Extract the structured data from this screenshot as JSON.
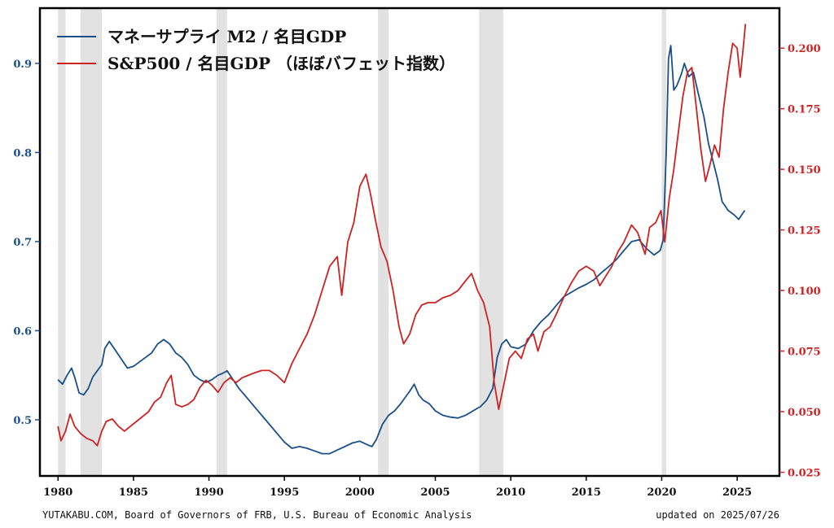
{
  "chart_data": {
    "type": "line",
    "x_range": [
      1978.8,
      2027.8
    ],
    "left_axis": {
      "ylim": [
        0.437,
        0.962
      ],
      "ticks": [
        0.5,
        0.6,
        0.7,
        0.8,
        0.9
      ],
      "tick_labels": [
        "0.5",
        "0.6",
        "0.7",
        "0.8",
        "0.9"
      ],
      "color": "#1a4f8a"
    },
    "right_axis": {
      "ylim": [
        0.0235,
        0.2165
      ],
      "ticks": [
        0.025,
        0.05,
        0.075,
        0.1,
        0.125,
        0.15,
        0.175,
        0.2
      ],
      "tick_labels": [
        "0.025",
        "0.050",
        "0.075",
        "0.100",
        "0.125",
        "0.150",
        "0.175",
        "0.200"
      ],
      "color": "#cc2222"
    },
    "x_ticks": [
      1980,
      1985,
      1990,
      1995,
      2000,
      2005,
      2010,
      2015,
      2020,
      2025
    ],
    "x_tick_labels": [
      "1980",
      "1985",
      "1990",
      "1995",
      "2000",
      "2005",
      "2010",
      "2015",
      "2020",
      "2025"
    ],
    "recessions": [
      [
        1980.0,
        1980.5
      ],
      [
        1981.5,
        1982.9
      ],
      [
        1990.5,
        1991.2
      ],
      [
        2001.2,
        2001.9
      ],
      [
        2007.9,
        2009.5
      ],
      [
        2020.0,
        2020.3
      ]
    ],
    "series": [
      {
        "name": "マネーサプライ M2 / 名目GDP",
        "axis": "left",
        "color": "#1a4f8a",
        "points": [
          [
            1980.0,
            0.545
          ],
          [
            1980.3,
            0.54
          ],
          [
            1980.6,
            0.55
          ],
          [
            1980.9,
            0.558
          ],
          [
            1981.1,
            0.548
          ],
          [
            1981.4,
            0.53
          ],
          [
            1981.7,
            0.528
          ],
          [
            1982.0,
            0.535
          ],
          [
            1982.3,
            0.548
          ],
          [
            1982.6,
            0.555
          ],
          [
            1982.9,
            0.562
          ],
          [
            1983.1,
            0.58
          ],
          [
            1983.4,
            0.588
          ],
          [
            1983.8,
            0.578
          ],
          [
            1984.2,
            0.568
          ],
          [
            1984.6,
            0.558
          ],
          [
            1985.0,
            0.56
          ],
          [
            1985.4,
            0.565
          ],
          [
            1985.8,
            0.57
          ],
          [
            1986.2,
            0.575
          ],
          [
            1986.6,
            0.585
          ],
          [
            1987.0,
            0.59
          ],
          [
            1987.4,
            0.585
          ],
          [
            1987.8,
            0.575
          ],
          [
            1988.2,
            0.57
          ],
          [
            1988.6,
            0.562
          ],
          [
            1989.0,
            0.55
          ],
          [
            1989.4,
            0.545
          ],
          [
            1989.8,
            0.542
          ],
          [
            1990.2,
            0.545
          ],
          [
            1990.6,
            0.55
          ],
          [
            1990.9,
            0.552
          ],
          [
            1991.2,
            0.555
          ],
          [
            1991.6,
            0.545
          ],
          [
            1992.0,
            0.535
          ],
          [
            1992.5,
            0.525
          ],
          [
            1993.0,
            0.515
          ],
          [
            1993.5,
            0.505
          ],
          [
            1994.0,
            0.495
          ],
          [
            1994.5,
            0.485
          ],
          [
            1995.0,
            0.475
          ],
          [
            1995.5,
            0.468
          ],
          [
            1996.0,
            0.47
          ],
          [
            1996.5,
            0.468
          ],
          [
            1997.0,
            0.465
          ],
          [
            1997.5,
            0.462
          ],
          [
            1998.0,
            0.462
          ],
          [
            1998.5,
            0.466
          ],
          [
            1999.0,
            0.47
          ],
          [
            1999.5,
            0.474
          ],
          [
            2000.0,
            0.476
          ],
          [
            2000.5,
            0.472
          ],
          [
            2000.8,
            0.47
          ],
          [
            2001.1,
            0.478
          ],
          [
            2001.5,
            0.495
          ],
          [
            2001.9,
            0.505
          ],
          [
            2002.3,
            0.51
          ],
          [
            2002.7,
            0.518
          ],
          [
            2003.0,
            0.525
          ],
          [
            2003.3,
            0.532
          ],
          [
            2003.6,
            0.54
          ],
          [
            2003.9,
            0.528
          ],
          [
            2004.2,
            0.522
          ],
          [
            2004.6,
            0.518
          ],
          [
            2005.0,
            0.51
          ],
          [
            2005.5,
            0.505
          ],
          [
            2006.0,
            0.503
          ],
          [
            2006.5,
            0.502
          ],
          [
            2007.0,
            0.505
          ],
          [
            2007.5,
            0.51
          ],
          [
            2008.0,
            0.515
          ],
          [
            2008.4,
            0.522
          ],
          [
            2008.8,
            0.535
          ],
          [
            2009.1,
            0.57
          ],
          [
            2009.4,
            0.585
          ],
          [
            2009.7,
            0.59
          ],
          [
            2010.0,
            0.582
          ],
          [
            2010.5,
            0.58
          ],
          [
            2011.0,
            0.585
          ],
          [
            2011.5,
            0.6
          ],
          [
            2012.0,
            0.61
          ],
          [
            2012.5,
            0.618
          ],
          [
            2013.0,
            0.628
          ],
          [
            2013.5,
            0.638
          ],
          [
            2014.0,
            0.643
          ],
          [
            2014.5,
            0.648
          ],
          [
            2015.0,
            0.652
          ],
          [
            2015.5,
            0.657
          ],
          [
            2016.0,
            0.665
          ],
          [
            2016.5,
            0.672
          ],
          [
            2017.0,
            0.68
          ],
          [
            2017.5,
            0.69
          ],
          [
            2018.0,
            0.7
          ],
          [
            2018.5,
            0.702
          ],
          [
            2019.0,
            0.692
          ],
          [
            2019.5,
            0.685
          ],
          [
            2019.9,
            0.69
          ],
          [
            2020.1,
            0.702
          ],
          [
            2020.3,
            0.8
          ],
          [
            2020.45,
            0.905
          ],
          [
            2020.6,
            0.92
          ],
          [
            2020.8,
            0.87
          ],
          [
            2021.0,
            0.875
          ],
          [
            2021.3,
            0.888
          ],
          [
            2021.5,
            0.9
          ],
          [
            2021.8,
            0.885
          ],
          [
            2022.1,
            0.89
          ],
          [
            2022.4,
            0.868
          ],
          [
            2022.8,
            0.84
          ],
          [
            2023.1,
            0.81
          ],
          [
            2023.4,
            0.79
          ],
          [
            2023.7,
            0.77
          ],
          [
            2024.0,
            0.745
          ],
          [
            2024.4,
            0.735
          ],
          [
            2024.8,
            0.73
          ],
          [
            2025.1,
            0.725
          ],
          [
            2025.3,
            0.73
          ],
          [
            2025.5,
            0.735
          ]
        ]
      },
      {
        "name": "S&P500 / 名目GDP （ほぼバフェット指数）",
        "axis": "right",
        "color": "#cc2222",
        "points": [
          [
            1980.0,
            0.044
          ],
          [
            1980.2,
            0.038
          ],
          [
            1980.5,
            0.042
          ],
          [
            1980.8,
            0.049
          ],
          [
            1981.1,
            0.044
          ],
          [
            1981.5,
            0.041
          ],
          [
            1981.9,
            0.039
          ],
          [
            1982.3,
            0.038
          ],
          [
            1982.6,
            0.036
          ],
          [
            1982.9,
            0.042
          ],
          [
            1983.2,
            0.046
          ],
          [
            1983.6,
            0.047
          ],
          [
            1984.0,
            0.044
          ],
          [
            1984.4,
            0.042
          ],
          [
            1984.8,
            0.044
          ],
          [
            1985.2,
            0.046
          ],
          [
            1985.6,
            0.048
          ],
          [
            1986.0,
            0.05
          ],
          [
            1986.4,
            0.054
          ],
          [
            1986.8,
            0.056
          ],
          [
            1987.2,
            0.062
          ],
          [
            1987.5,
            0.065
          ],
          [
            1987.8,
            0.053
          ],
          [
            1988.2,
            0.052
          ],
          [
            1988.6,
            0.053
          ],
          [
            1989.0,
            0.055
          ],
          [
            1989.4,
            0.06
          ],
          [
            1989.8,
            0.063
          ],
          [
            1990.2,
            0.061
          ],
          [
            1990.6,
            0.058
          ],
          [
            1991.0,
            0.062
          ],
          [
            1991.4,
            0.064
          ],
          [
            1991.8,
            0.062
          ],
          [
            1992.2,
            0.064
          ],
          [
            1992.6,
            0.065
          ],
          [
            1993.0,
            0.066
          ],
          [
            1993.5,
            0.067
          ],
          [
            1994.0,
            0.067
          ],
          [
            1994.5,
            0.065
          ],
          [
            1995.0,
            0.062
          ],
          [
            1995.5,
            0.07
          ],
          [
            1996.0,
            0.076
          ],
          [
            1996.5,
            0.082
          ],
          [
            1997.0,
            0.09
          ],
          [
            1997.5,
            0.1
          ],
          [
            1998.0,
            0.11
          ],
          [
            1998.5,
            0.114
          ],
          [
            1998.8,
            0.098
          ],
          [
            1999.2,
            0.12
          ],
          [
            1999.6,
            0.128
          ],
          [
            2000.0,
            0.143
          ],
          [
            2000.4,
            0.148
          ],
          [
            2000.7,
            0.14
          ],
          [
            2001.0,
            0.13
          ],
          [
            2001.4,
            0.118
          ],
          [
            2001.8,
            0.112
          ],
          [
            2002.2,
            0.1
          ],
          [
            2002.6,
            0.085
          ],
          [
            2002.9,
            0.078
          ],
          [
            2003.3,
            0.082
          ],
          [
            2003.7,
            0.09
          ],
          [
            2004.1,
            0.094
          ],
          [
            2004.5,
            0.095
          ],
          [
            2005.0,
            0.095
          ],
          [
            2005.5,
            0.097
          ],
          [
            2006.0,
            0.098
          ],
          [
            2006.5,
            0.1
          ],
          [
            2007.0,
            0.104
          ],
          [
            2007.4,
            0.107
          ],
          [
            2007.8,
            0.1
          ],
          [
            2008.2,
            0.095
          ],
          [
            2008.6,
            0.085
          ],
          [
            2008.9,
            0.062
          ],
          [
            2009.2,
            0.051
          ],
          [
            2009.5,
            0.06
          ],
          [
            2009.9,
            0.072
          ],
          [
            2010.3,
            0.075
          ],
          [
            2010.7,
            0.072
          ],
          [
            2011.1,
            0.08
          ],
          [
            2011.5,
            0.082
          ],
          [
            2011.8,
            0.075
          ],
          [
            2012.2,
            0.083
          ],
          [
            2012.6,
            0.085
          ],
          [
            2013.0,
            0.09
          ],
          [
            2013.5,
            0.097
          ],
          [
            2014.0,
            0.103
          ],
          [
            2014.5,
            0.108
          ],
          [
            2015.0,
            0.11
          ],
          [
            2015.5,
            0.108
          ],
          [
            2015.9,
            0.102
          ],
          [
            2016.3,
            0.106
          ],
          [
            2016.7,
            0.11
          ],
          [
            2017.1,
            0.116
          ],
          [
            2017.5,
            0.12
          ],
          [
            2018.0,
            0.127
          ],
          [
            2018.4,
            0.124
          ],
          [
            2018.9,
            0.115
          ],
          [
            2019.2,
            0.126
          ],
          [
            2019.6,
            0.128
          ],
          [
            2019.95,
            0.133
          ],
          [
            2020.2,
            0.12
          ],
          [
            2020.5,
            0.138
          ],
          [
            2020.8,
            0.15
          ],
          [
            2021.1,
            0.165
          ],
          [
            2021.4,
            0.18
          ],
          [
            2021.7,
            0.19
          ],
          [
            2022.0,
            0.192
          ],
          [
            2022.3,
            0.175
          ],
          [
            2022.6,
            0.158
          ],
          [
            2022.9,
            0.145
          ],
          [
            2023.2,
            0.152
          ],
          [
            2023.5,
            0.16
          ],
          [
            2023.8,
            0.155
          ],
          [
            2024.1,
            0.175
          ],
          [
            2024.4,
            0.19
          ],
          [
            2024.7,
            0.202
          ],
          [
            2025.0,
            0.2
          ],
          [
            2025.2,
            0.188
          ],
          [
            2025.4,
            0.2
          ],
          [
            2025.55,
            0.21
          ]
        ]
      }
    ],
    "legend_placement": "top-left",
    "grid": false
  },
  "footer": {
    "source": "YUTAKABU.COM, Board of Governors of FRB, U.S. Bureau of Economic Analysis",
    "updated": "updated on 2025/07/26"
  }
}
